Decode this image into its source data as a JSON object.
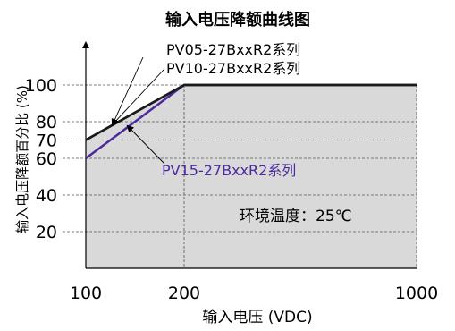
{
  "chart_data": {
    "type": "line",
    "title": "输入电压降额曲线图",
    "xlabel": "输入电压 (VDC)",
    "ylabel": "输入电压降额百分比 (%)",
    "x_categories": [
      "100",
      "200",
      "1000"
    ],
    "y_ticks": [
      20,
      40,
      60,
      70,
      80,
      100
    ],
    "ylim": [
      0,
      100
    ],
    "grid": true,
    "shaded_area": true,
    "annotation": "环境温度：25℃",
    "series": [
      {
        "name": "PV05-27BxxR2系列",
        "color": "#1a1a1a",
        "points": [
          [
            "100",
            70
          ],
          [
            "200",
            100
          ],
          [
            "1000",
            100
          ]
        ]
      },
      {
        "name": "PV10-27BxxR2系列",
        "color": "#1a1a1a",
        "points": [
          [
            "100",
            70
          ],
          [
            "200",
            100
          ],
          [
            "1000",
            100
          ]
        ]
      },
      {
        "name": "PV15-27BxxR2系列",
        "color": "#4b2a9e",
        "points": [
          [
            "100",
            60
          ],
          [
            "200",
            100
          ],
          [
            "1000",
            100
          ]
        ]
      }
    ]
  }
}
